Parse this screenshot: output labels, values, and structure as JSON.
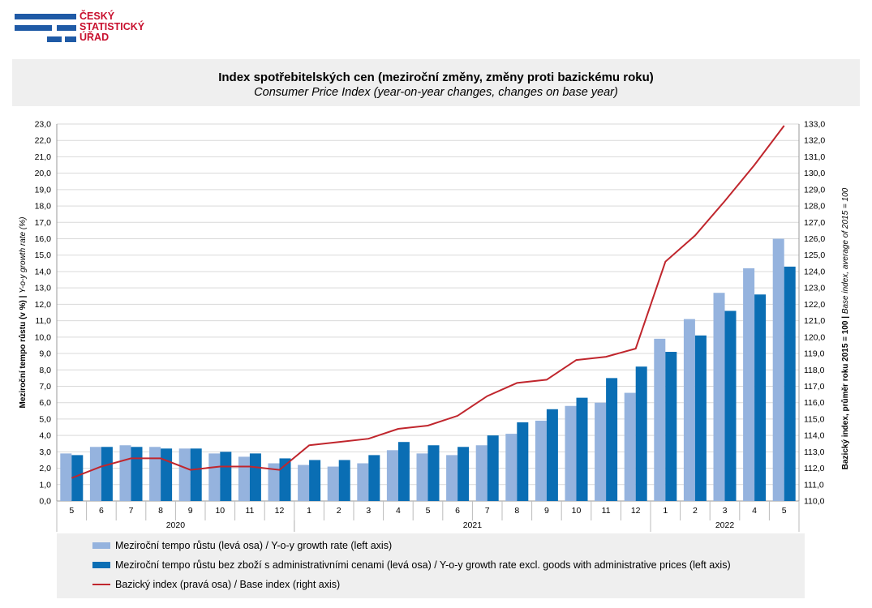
{
  "logo": {
    "lines": [
      "ČESKÝ",
      "STATISTICKÝ",
      "ÚŘAD"
    ]
  },
  "header": {
    "title": "Index spotřebitelských cen (meziroční změny, změny proti bazickému roku)",
    "subtitle": "Consumer Price Index (year-on-year changes, changes on base year)"
  },
  "colors": {
    "series1": "#95b3de",
    "series2": "#0a6eb4",
    "series3": "#c0262d"
  },
  "chart_data": {
    "type": "bar",
    "categories": [
      "5",
      "6",
      "7",
      "8",
      "9",
      "10",
      "11",
      "12",
      "1",
      "2",
      "3",
      "4",
      "5",
      "6",
      "7",
      "8",
      "9",
      "10",
      "11",
      "12",
      "1",
      "2",
      "3",
      "4",
      "5"
    ],
    "years": [
      {
        "label": "2020",
        "from": 0,
        "to": 7
      },
      {
        "label": "2021",
        "from": 8,
        "to": 19
      },
      {
        "label": "2022",
        "from": 20,
        "to": 24
      }
    ],
    "ylabel_left": "Meziroční tempo růstu (v %) | Y-o-y growth rate (%)",
    "ylabel_left_bold": "Meziroční tempo růstu (v %)",
    "ylabel_left_italic": "Y-o-y growth rate (%)",
    "ylabel_right_bold": "Bazický index, průměr roku 2015 = 100",
    "ylabel_right_italic": "Base index, average of 2015 = 100",
    "ylim_left": [
      0,
      23
    ],
    "ylim_right": [
      110,
      133
    ],
    "series": [
      {
        "name": "Meziroční tempo růstu (levá osa) / Y-o-y growth rate (left axis)",
        "axis": "left",
        "values": [
          2.9,
          3.3,
          3.4,
          3.3,
          3.2,
          2.9,
          2.7,
          2.3,
          2.2,
          2.1,
          2.3,
          3.1,
          2.9,
          2.8,
          3.4,
          4.1,
          4.9,
          5.8,
          6.0,
          6.6,
          9.9,
          11.1,
          12.7,
          14.2,
          16.0
        ]
      },
      {
        "name": "Meziroční tempo růstu bez zboží s administrativními cenami (levá osa) / Y-o-y growth rate excl. goods with administrative prices (left axis)",
        "axis": "left",
        "values": [
          2.8,
          3.3,
          3.3,
          3.2,
          3.2,
          3.0,
          2.9,
          2.6,
          2.5,
          2.5,
          2.8,
          3.6,
          3.4,
          3.3,
          4.0,
          4.8,
          5.6,
          6.3,
          7.5,
          8.2,
          9.1,
          10.1,
          11.6,
          12.6,
          14.3
        ]
      },
      {
        "name": "Bazický index (pravá osa) / Base index (right axis)",
        "axis": "right",
        "values": [
          111.4,
          112.1,
          112.6,
          112.6,
          111.9,
          112.1,
          112.1,
          111.9,
          113.4,
          113.6,
          113.8,
          114.4,
          114.6,
          115.2,
          116.4,
          117.2,
          117.4,
          118.6,
          118.8,
          119.3,
          124.6,
          126.2,
          128.3,
          130.5,
          132.9
        ]
      }
    ]
  },
  "legend": {
    "item1": "Meziroční tempo růstu (levá osa) / Y-o-y growth rate (left axis)",
    "item2": "Meziroční tempo růstu bez zboží s administrativními cenami (levá osa) / Y-o-y growth rate excl. goods with administrative prices (left axis)",
    "item3": "Bazický index (pravá osa) / Base index (right axis)"
  }
}
